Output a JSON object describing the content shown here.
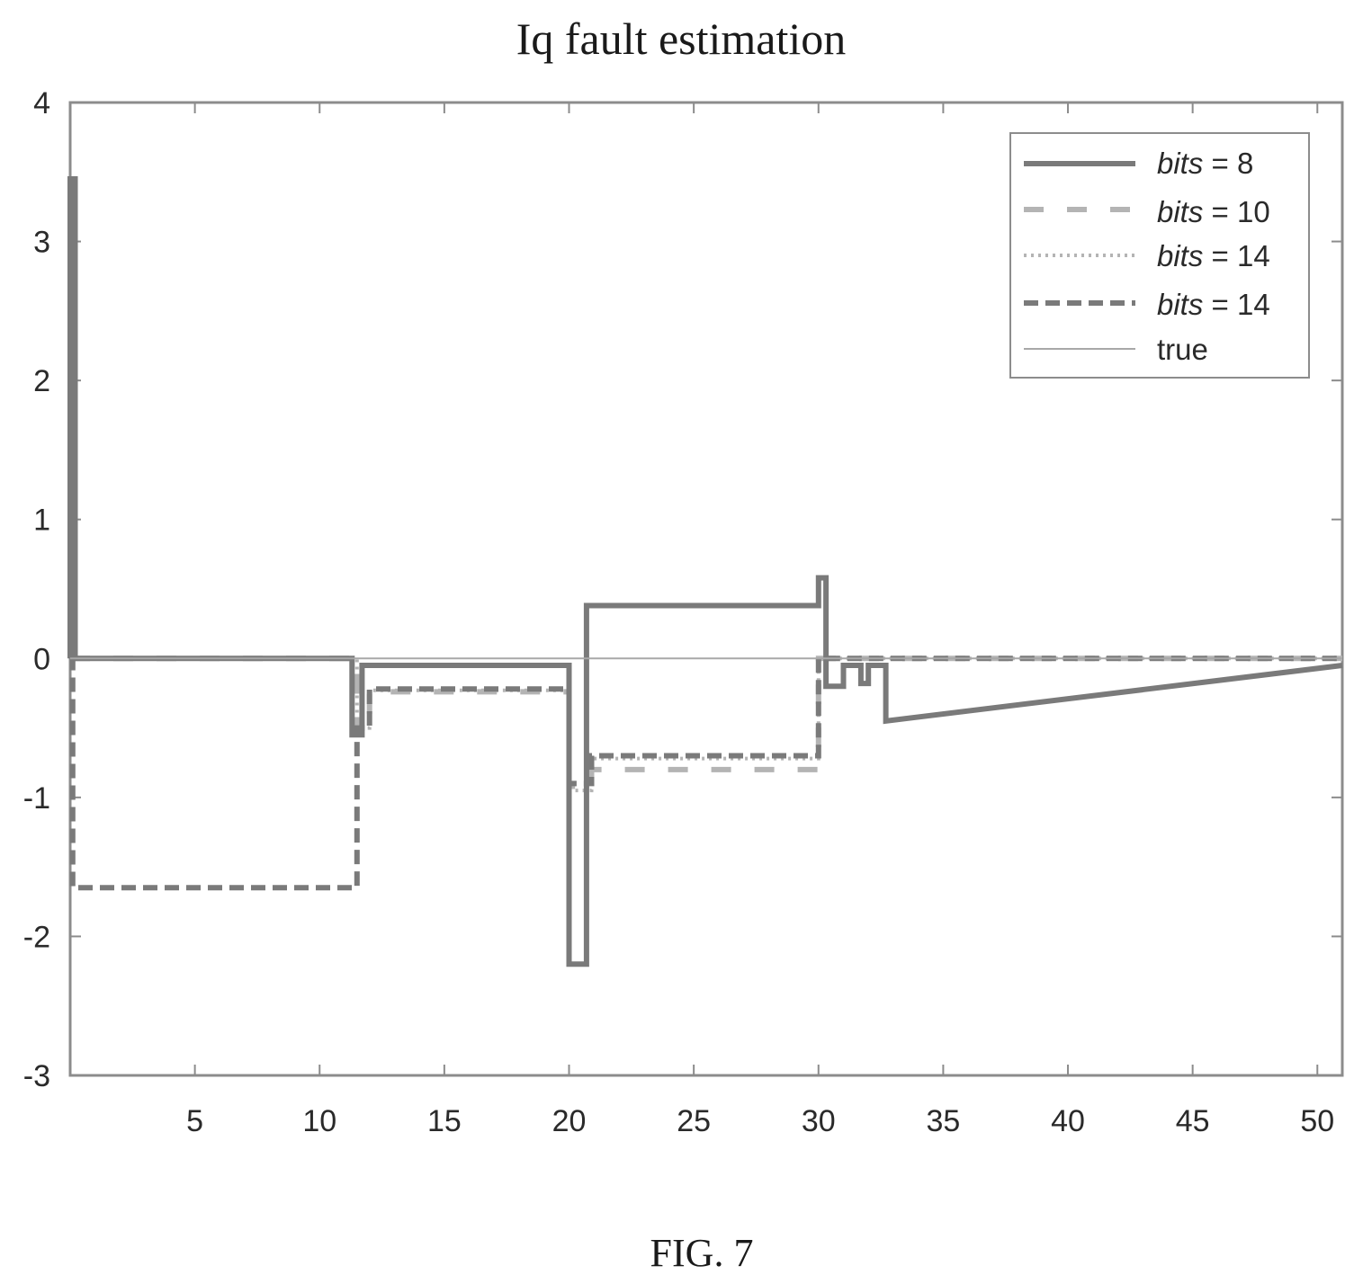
{
  "figure_label": "FIG. 7",
  "chart_data": {
    "type": "line",
    "title": "Iq fault estimation",
    "xlabel": "",
    "ylabel": "",
    "xlim": [
      0,
      51
    ],
    "ylim": [
      -3,
      4
    ],
    "x_ticks": [
      5,
      10,
      15,
      20,
      25,
      30,
      35,
      40,
      45,
      50
    ],
    "y_ticks": [
      4,
      3,
      2,
      1,
      0,
      -1,
      -2,
      -3
    ],
    "grid": false,
    "legend_position": "top-right",
    "colors": {
      "axes": "#8c8c8c",
      "series_dark": "#7a7a7a",
      "series_light": "#b4b4b4",
      "true": "#a8a8a8"
    },
    "legend": [
      {
        "italic": "bits",
        "rest": " = 8"
      },
      {
        "italic": "bits",
        "rest": " = 10"
      },
      {
        "italic": "bits",
        "rest": " = 14"
      },
      {
        "italic": "bits",
        "rest": " = 14"
      },
      {
        "italic": "",
        "rest": "true"
      }
    ],
    "series": [
      {
        "style": "solid-thick",
        "x": [
          0,
          0,
          0.2,
          0.2,
          11.3,
          11.3,
          11.7,
          11.7,
          20,
          20,
          20.7,
          20.7,
          30,
          30,
          30.3,
          30.3,
          31,
          31,
          31.7,
          31.7,
          32,
          32,
          32.7,
          32.7,
          51
        ],
        "y": [
          0,
          3.45,
          3.45,
          0,
          0,
          -0.55,
          -0.55,
          -0.05,
          -0.05,
          -2.2,
          -2.2,
          0.38,
          0.38,
          0.58,
          0.58,
          -0.2,
          -0.2,
          -0.05,
          -0.05,
          -0.18,
          -0.18,
          -0.05,
          -0.05,
          -0.45,
          -0.05
        ]
      },
      {
        "style": "dashed-long",
        "x": [
          0,
          11.5,
          11.5,
          12,
          12,
          20,
          20,
          20.9,
          20.9,
          30,
          30,
          51
        ],
        "y": [
          0,
          0,
          -0.52,
          -0.52,
          -0.24,
          -0.24,
          -0.92,
          -0.92,
          -0.8,
          -0.8,
          0,
          0
        ]
      },
      {
        "style": "dotted",
        "x": [
          0,
          11.5,
          11.5,
          12,
          12,
          20,
          20,
          20.9,
          20.9,
          30,
          30,
          51
        ],
        "y": [
          0,
          0,
          -0.5,
          -0.5,
          -0.23,
          -0.23,
          -0.95,
          -0.95,
          -0.72,
          -0.72,
          0,
          0
        ]
      },
      {
        "style": "dashed-short",
        "x": [
          0,
          0.1,
          0.1,
          11.5,
          11.5,
          12,
          12,
          20,
          20,
          20.9,
          20.9,
          30,
          30,
          51
        ],
        "y": [
          0,
          0,
          -1.65,
          -1.65,
          -0.5,
          -0.5,
          -0.22,
          -0.22,
          -0.9,
          -0.9,
          -0.7,
          -0.7,
          0,
          0
        ]
      },
      {
        "style": "true-thin",
        "x": [
          0,
          20,
          20,
          30,
          30,
          51
        ],
        "y": [
          0,
          0,
          0,
          0,
          0,
          0
        ]
      }
    ]
  }
}
